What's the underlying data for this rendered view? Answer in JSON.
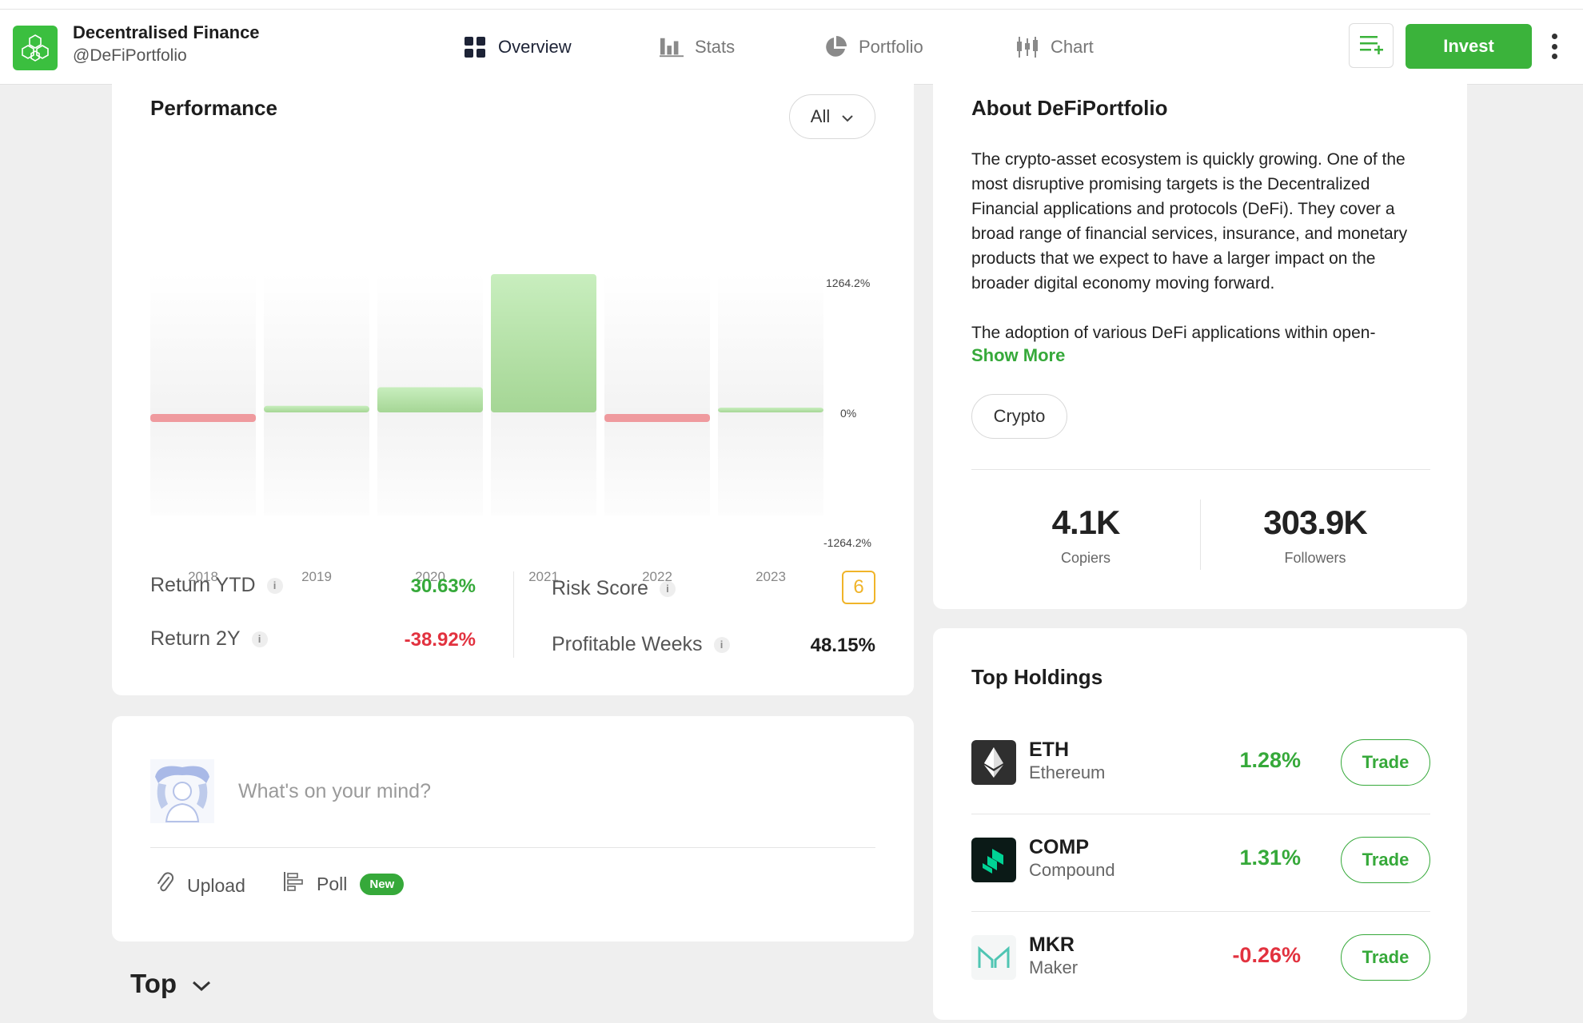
{
  "header": {
    "brand_name": "Decentralised Finance",
    "brand_handle": "@DeFiPortfolio",
    "tabs": [
      {
        "label": "Overview",
        "icon": "grid-icon",
        "active": true
      },
      {
        "label": "Stats",
        "icon": "bar-chart-icon",
        "active": false
      },
      {
        "label": "Portfolio",
        "icon": "pie-chart-icon",
        "active": false
      },
      {
        "label": "Chart",
        "icon": "candlestick-icon",
        "active": false
      }
    ],
    "invest_label": "Invest",
    "accent_color": "#3bb33b"
  },
  "performance": {
    "title": "Performance",
    "filter_value": "All",
    "stats": {
      "return_ytd_label": "Return YTD",
      "return_ytd_value": "30.63%",
      "return_2y_label": "Return 2Y",
      "return_2y_value": "-38.92%",
      "risk_score_label": "Risk Score",
      "risk_score_value": "6",
      "profitable_weeks_label": "Profitable Weeks",
      "profitable_weeks_value": "48.15%"
    }
  },
  "chart_data": {
    "type": "bar",
    "categories": [
      "2018",
      "2019",
      "2020",
      "2021",
      "2022",
      "2023"
    ],
    "values": [
      -60,
      60,
      230,
      1264.2,
      -60,
      30
    ],
    "yticks": [
      "1264.2%",
      "0%",
      "-1264.2%"
    ],
    "ylim": [
      -1264.2,
      1264.2
    ],
    "positive_color": "#a8dc9b",
    "negative_color": "#ef9a9e"
  },
  "about": {
    "title": "About DeFiPortfolio",
    "paragraph_1": "The crypto-asset ecosystem is quickly growing. One of the most disruptive promising targets is the Decentralized Financial applications and protocols (DeFi). They cover a broad range of financial services, insurance, and monetary products that we expect to have a larger impact on the broader digital economy moving forward.",
    "paragraph_2": "The adoption of various DeFi applications within open-",
    "show_more": "Show More",
    "tag": "Crypto",
    "copiers_value": "4.1K",
    "copiers_label": "Copiers",
    "followers_value": "303.9K",
    "followers_label": "Followers"
  },
  "post": {
    "placeholder": "What's on your mind?",
    "upload_label": "Upload",
    "poll_label": "Poll",
    "new_badge": "New"
  },
  "feed": {
    "sort_label": "Top"
  },
  "holdings": {
    "title": "Top Holdings",
    "items": [
      {
        "symbol": "ETH",
        "name": "Ethereum",
        "change": "1.28%",
        "trade": "Trade"
      },
      {
        "symbol": "COMP",
        "name": "Compound",
        "change": "1.31%",
        "trade": "Trade"
      },
      {
        "symbol": "MKR",
        "name": "Maker",
        "change": "-0.26%",
        "trade": "Trade"
      }
    ]
  }
}
